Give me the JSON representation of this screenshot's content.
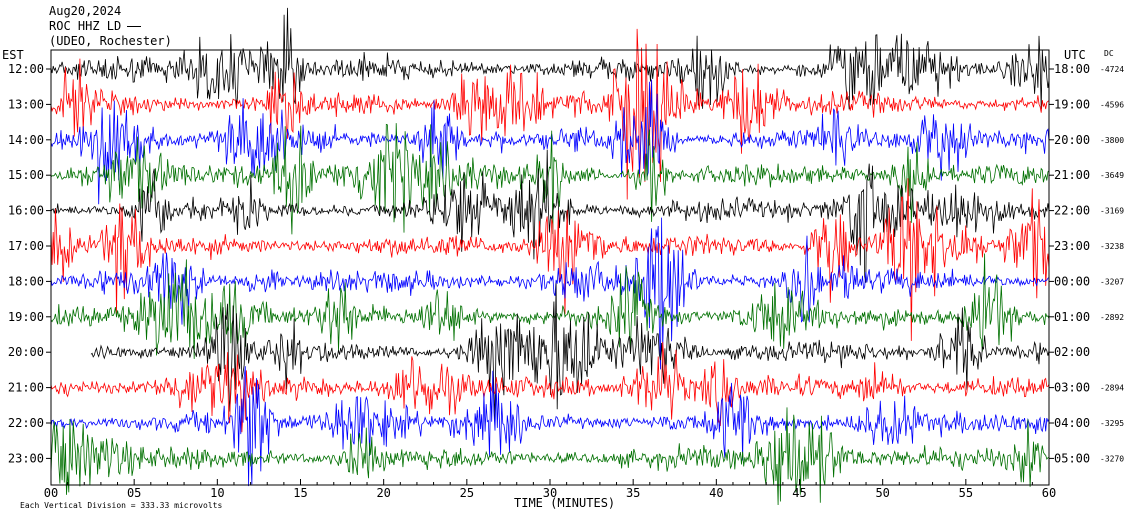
{
  "header": {
    "date": "Aug20,2024",
    "station": "ROC HHZ LD",
    "network": "(UDEO, Rochester)"
  },
  "chart_data": {
    "type": "line",
    "title": "Aug20,2024 ROC HHZ LD (UDEO, Rochester)",
    "left_axis_title": "EST",
    "right_axis_title": "UTC",
    "dc_title": "DC",
    "xlabel": "TIME (MINUTES)",
    "x_ticks": [
      "00",
      "05",
      "10",
      "15",
      "20",
      "25",
      "30",
      "35",
      "40",
      "45",
      "50",
      "55",
      "60"
    ],
    "xlim": [
      0,
      60
    ],
    "footer": "Each Vertical Division = 333.33 microvolts",
    "trace_colors": [
      "#000000",
      "#ff0000",
      "#0000ff",
      "#007000"
    ],
    "rows": [
      {
        "est": "12:00",
        "utc": "18:00",
        "dc": "-4724"
      },
      {
        "est": "13:00",
        "utc": "19:00",
        "dc": "-4596"
      },
      {
        "est": "14:00",
        "utc": "20:00",
        "dc": "-3800"
      },
      {
        "est": "15:00",
        "utc": "21:00",
        "dc": "-3649"
      },
      {
        "est": "16:00",
        "utc": "22:00",
        "dc": "-3169"
      },
      {
        "est": "17:00",
        "utc": "23:00",
        "dc": "-3238"
      },
      {
        "est": "18:00",
        "utc": "00:00",
        "dc": "-3207"
      },
      {
        "est": "19:00",
        "utc": "01:00",
        "dc": "-2892"
      },
      {
        "est": "20:00",
        "utc": "02:00",
        "dc": ""
      },
      {
        "est": "21:00",
        "utc": "03:00",
        "dc": "-2894"
      },
      {
        "est": "22:00",
        "utc": "04:00",
        "dc": "-3295"
      },
      {
        "est": "23:00",
        "utc": "05:00",
        "dc": "-3270"
      }
    ]
  }
}
